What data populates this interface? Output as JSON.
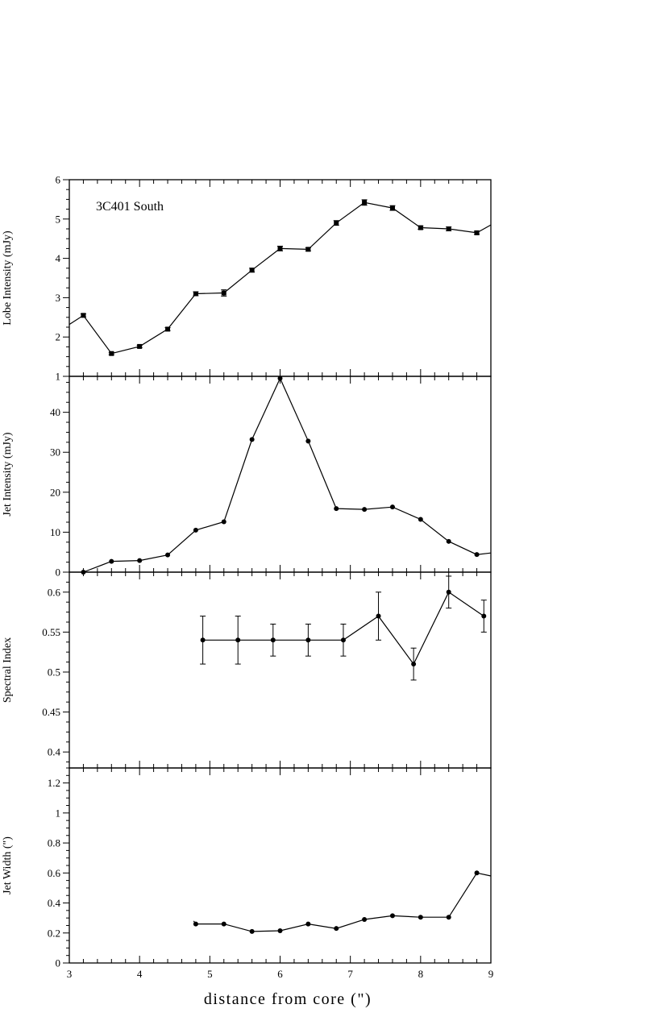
{
  "chart_data": [
    {
      "type": "line",
      "annotation": "3C401 South",
      "ylabel": "Lobe Intensity (mJy)",
      "ylim": [
        1,
        6
      ],
      "yticks": [
        1,
        2,
        3,
        4,
        5,
        6
      ],
      "ytick_labels": [
        "1",
        "2",
        "3",
        "4",
        "5",
        "6"
      ],
      "marker": "square",
      "x": [
        3.2,
        3.6,
        4.0,
        4.4,
        4.8,
        5.2,
        5.6,
        6.0,
        6.4,
        6.8,
        7.2,
        7.6,
        8.0,
        8.4,
        8.8
      ],
      "y": [
        2.55,
        1.58,
        1.76,
        2.2,
        3.1,
        3.12,
        3.7,
        4.25,
        4.23,
        4.9,
        5.42,
        5.28,
        4.78,
        4.75,
        4.65
      ],
      "yerr": [
        0.04,
        0.03,
        0.03,
        0.04,
        0.05,
        0.08,
        0.05,
        0.06,
        0.04,
        0.06,
        0.07,
        0.06,
        0.04,
        0.05,
        0.04
      ],
      "line_start": [
        3.0,
        2.32
      ],
      "line_end": [
        9.0,
        4.85
      ]
    },
    {
      "type": "line",
      "ylabel": "Jet Intensity (mJy)",
      "ylim": [
        0,
        49
      ],
      "yticks": [
        0,
        10,
        20,
        30,
        40
      ],
      "ytick_labels": [
        "0",
        "10",
        "20",
        "30",
        "40"
      ],
      "marker": "circle",
      "x": [
        3.2,
        3.6,
        4.0,
        4.4,
        4.8,
        5.2,
        5.6,
        6.0,
        6.4,
        6.8,
        7.2,
        7.6,
        8.0,
        8.4,
        8.8
      ],
      "y": [
        0.0,
        2.7,
        2.9,
        4.3,
        10.5,
        12.6,
        33.2,
        48.5,
        32.8,
        15.9,
        15.7,
        16.3,
        13.2,
        7.7,
        4.4
      ],
      "line_start": null,
      "line_end": [
        9.0,
        4.8
      ]
    },
    {
      "type": "line",
      "ylabel": "Spectral Index",
      "ylim": [
        0.38,
        0.625
      ],
      "yticks": [
        0.4,
        0.45,
        0.5,
        0.55,
        0.6
      ],
      "ytick_labels": [
        "0.4",
        "0.45",
        "0.5",
        "0.55",
        "0.6"
      ],
      "marker": "circle",
      "x": [
        4.9,
        5.4,
        5.9,
        6.4,
        6.9,
        7.4,
        7.9,
        8.4,
        8.9
      ],
      "y": [
        0.54,
        0.54,
        0.54,
        0.54,
        0.54,
        0.57,
        0.51,
        0.6,
        0.57
      ],
      "yerr": [
        0.03,
        0.03,
        0.02,
        0.02,
        0.02,
        0.03,
        0.02,
        0.02,
        0.02
      ],
      "line_start": null,
      "line_end": null
    },
    {
      "type": "line",
      "ylabel": "Jet Width (\")",
      "ylim": [
        0,
        1.3
      ],
      "yticks": [
        0,
        0.2,
        0.4,
        0.6,
        0.8,
        1,
        1.2
      ],
      "ytick_labels": [
        "0",
        "0.2",
        "0.4",
        "0.6",
        "0.8",
        "1",
        "1.2"
      ],
      "marker": "circle",
      "x": [
        4.8,
        5.2,
        5.6,
        6.0,
        6.4,
        6.8,
        7.2,
        7.6,
        8.0,
        8.4,
        8.8
      ],
      "y": [
        0.26,
        0.26,
        0.21,
        0.215,
        0.26,
        0.23,
        0.29,
        0.315,
        0.305,
        0.305,
        0.6
      ],
      "line_start": [
        4.77,
        0.28
      ],
      "line_end": [
        9.0,
        0.58
      ]
    }
  ],
  "x_axis": {
    "xlabel": "distance from core (\")",
    "xlim": [
      3,
      9
    ],
    "xticks": [
      3,
      4,
      5,
      6,
      7,
      8,
      9
    ],
    "xtick_labels": [
      "3",
      "4",
      "5",
      "6",
      "7",
      "8",
      "9"
    ],
    "minor_step": 0.2
  }
}
